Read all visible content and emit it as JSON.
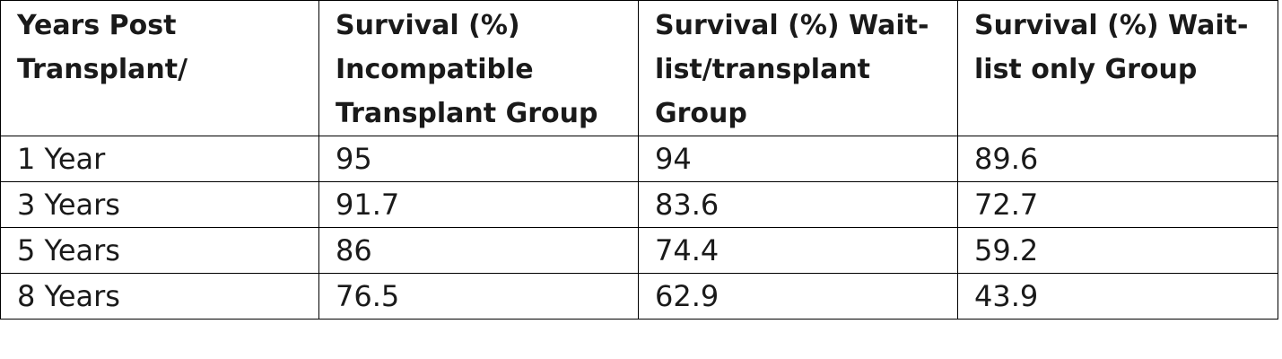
{
  "table": {
    "headers": [
      "Years Post Transplant/",
      "Survival  (%) Incompatible Transplant Group",
      "Survival (%) Wait-list/transplant Group",
      "Survival (%) Wait-list only Group"
    ],
    "rows": [
      [
        "1 Year",
        "95",
        "94",
        "89.6"
      ],
      [
        "3 Years",
        "91.7",
        "83.6",
        "72.7"
      ],
      [
        "5 Years",
        "86",
        "74.4",
        "59.2"
      ],
      [
        "8 Years",
        "76.5",
        "62.9",
        "43.9"
      ]
    ]
  }
}
